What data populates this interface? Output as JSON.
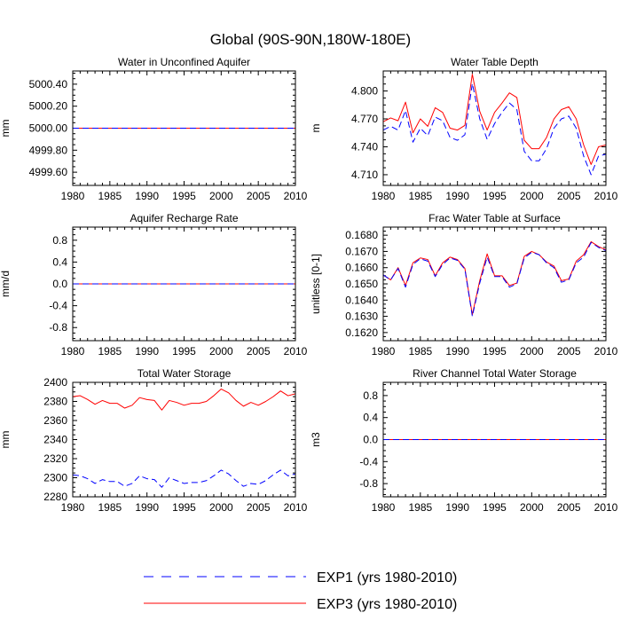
{
  "figure": {
    "title": "Global (90S-90N,180W-180E)"
  },
  "legend": [
    {
      "label": "EXP1 (yrs 1980-2010)",
      "color": "#0000ff",
      "dash": "dashed"
    },
    {
      "label": "EXP3 (yrs 1980-2010)",
      "color": "#ff0000",
      "dash": "solid"
    }
  ],
  "chart_data": [
    {
      "type": "line",
      "title": "Water in Unconfined Aquifer",
      "xlabel": "",
      "ylabel": "mm",
      "xlim": [
        1980,
        2010
      ],
      "ylim": [
        4999.48,
        5000.52
      ],
      "xticks": [
        1980,
        1985,
        1990,
        1995,
        2000,
        2005,
        2010
      ],
      "yticks": [
        4999.6,
        4999.8,
        5000.0,
        5000.2,
        5000.4
      ],
      "ytick_labels": [
        "4999.60",
        "4999.80",
        "5000.00",
        "5000.20",
        "5000.40"
      ],
      "x": [
        1980,
        2010
      ],
      "series": [
        {
          "name": "EXP1 (yrs 1980-2010)",
          "values": [
            5000.0,
            5000.0
          ]
        },
        {
          "name": "EXP3 (yrs 1980-2010)",
          "values": [
            5000.0,
            5000.0
          ]
        }
      ]
    },
    {
      "type": "line",
      "title": "Water Table Depth",
      "xlabel": "",
      "ylabel": "m",
      "xlim": [
        1980,
        2010
      ],
      "ylim": [
        4.6985,
        4.8215
      ],
      "xticks": [
        1980,
        1985,
        1990,
        1995,
        2000,
        2005,
        2010
      ],
      "yticks": [
        4.71,
        4.74,
        4.77,
        4.8
      ],
      "ytick_labels": [
        "4.710",
        "4.740",
        "4.770",
        "4.800"
      ],
      "x": [
        1980,
        1981,
        1982,
        1983,
        1984,
        1985,
        1986,
        1987,
        1988,
        1989,
        1990,
        1991,
        1992,
        1993,
        1994,
        1995,
        1996,
        1997,
        1998,
        1999,
        2000,
        2001,
        2002,
        2003,
        2004,
        2005,
        2006,
        2007,
        2008,
        2009,
        2010
      ],
      "series": [
        {
          "name": "EXP1 (yrs 1980-2010)",
          "values": [
            4.758,
            4.762,
            4.758,
            4.779,
            4.745,
            4.76,
            4.752,
            4.772,
            4.768,
            4.75,
            4.747,
            4.753,
            4.808,
            4.77,
            4.748,
            4.765,
            4.777,
            4.787,
            4.78,
            4.735,
            4.725,
            4.725,
            4.738,
            4.76,
            4.77,
            4.773,
            4.76,
            4.73,
            4.71,
            4.73,
            4.732
          ]
        },
        {
          "name": "EXP3 (yrs 1980-2010)",
          "values": [
            4.767,
            4.771,
            4.768,
            4.788,
            4.755,
            4.77,
            4.762,
            4.782,
            4.777,
            4.76,
            4.758,
            4.763,
            4.818,
            4.778,
            4.758,
            4.777,
            4.787,
            4.798,
            4.793,
            4.747,
            4.738,
            4.738,
            4.75,
            4.77,
            4.78,
            4.783,
            4.77,
            4.742,
            4.721,
            4.74,
            4.742
          ]
        }
      ]
    },
    {
      "type": "line",
      "title": "Aquifer Recharge Rate",
      "xlabel": "",
      "ylabel": "mm/d",
      "xlim": [
        1980,
        2010
      ],
      "ylim": [
        -1.04,
        1.04
      ],
      "xticks": [
        1980,
        1985,
        1990,
        1995,
        2000,
        2005,
        2010
      ],
      "yticks": [
        -0.8,
        -0.4,
        0.0,
        0.4,
        0.8
      ],
      "ytick_labels": [
        "-0.8",
        "-0.4",
        "0.0",
        "0.4",
        "0.8"
      ],
      "x": [
        1980,
        2010
      ],
      "series": [
        {
          "name": "EXP1 (yrs 1980-2010)",
          "values": [
            0.0,
            0.0
          ]
        },
        {
          "name": "EXP3 (yrs 1980-2010)",
          "values": [
            0.0,
            0.0
          ]
        }
      ]
    },
    {
      "type": "line",
      "title": "Frac Water Table at Surface",
      "xlabel": "",
      "ylabel": "unitless [0-1]",
      "xlim": [
        1980,
        2010
      ],
      "ylim": [
        0.1615,
        0.1685
      ],
      "xticks": [
        1980,
        1985,
        1990,
        1995,
        2000,
        2005,
        2010
      ],
      "yticks": [
        0.162,
        0.163,
        0.164,
        0.165,
        0.166,
        0.167,
        0.168
      ],
      "ytick_labels": [
        "0.1620",
        "0.1630",
        "0.1640",
        "0.1650",
        "0.1660",
        "0.1670",
        "0.1680"
      ],
      "x": [
        1980,
        1981,
        1982,
        1983,
        1984,
        1985,
        1986,
        1987,
        1988,
        1989,
        1990,
        1991,
        1992,
        1993,
        1994,
        1995,
        1996,
        1997,
        1998,
        1999,
        2000,
        2001,
        2002,
        2003,
        2004,
        2005,
        2006,
        2007,
        2008,
        2009,
        2010
      ],
      "series": [
        {
          "name": "EXP1 (yrs 1980-2010)",
          "values": [
            0.16555,
            0.16525,
            0.16595,
            0.1648,
            0.1662,
            0.16655,
            0.1664,
            0.16545,
            0.1662,
            0.1666,
            0.16645,
            0.1659,
            0.163,
            0.16505,
            0.16665,
            0.16545,
            0.16545,
            0.1648,
            0.165,
            0.1666,
            0.16695,
            0.1668,
            0.1663,
            0.166,
            0.1651,
            0.16525,
            0.1663,
            0.16665,
            0.16755,
            0.16725,
            0.16705
          ]
        },
        {
          "name": "EXP3 (yrs 1980-2010)",
          "values": [
            0.16555,
            0.16525,
            0.166,
            0.1649,
            0.1663,
            0.1666,
            0.1665,
            0.1655,
            0.1663,
            0.16665,
            0.1665,
            0.16595,
            0.1631,
            0.1652,
            0.16685,
            0.1655,
            0.1655,
            0.1649,
            0.16505,
            0.1667,
            0.167,
            0.1668,
            0.16635,
            0.1661,
            0.1652,
            0.1653,
            0.1664,
            0.1668,
            0.1676,
            0.1673,
            0.1671
          ]
        }
      ]
    },
    {
      "type": "line",
      "title": "Total Water Storage",
      "xlabel": "",
      "ylabel": "mm",
      "xlim": [
        1980,
        2010
      ],
      "ylim": [
        2280,
        2400
      ],
      "xticks": [
        1980,
        1985,
        1990,
        1995,
        2000,
        2005,
        2010
      ],
      "yticks": [
        2280,
        2300,
        2320,
        2340,
        2360,
        2380,
        2400
      ],
      "ytick_labels": [
        "2280",
        "2300",
        "2320",
        "2340",
        "2360",
        "2380",
        "2400"
      ],
      "x": [
        1980,
        1981,
        1982,
        1983,
        1984,
        1985,
        1986,
        1987,
        1988,
        1989,
        1990,
        1991,
        1992,
        1993,
        1994,
        1995,
        1996,
        1997,
        1998,
        1999,
        2000,
        2001,
        2002,
        2003,
        2004,
        2005,
        2006,
        2007,
        2008,
        2009,
        2010
      ],
      "series": [
        {
          "name": "EXP1 (yrs 1980-2010)",
          "values": [
            2303,
            2302,
            2299,
            2294,
            2298,
            2296,
            2296,
            2291,
            2294,
            2302,
            2299,
            2298,
            2290,
            2300,
            2297,
            2294,
            2295,
            2295,
            2297,
            2302,
            2308,
            2304,
            2297,
            2291,
            2294,
            2293,
            2297,
            2303,
            2308,
            2302,
            2304
          ]
        },
        {
          "name": "EXP3 (yrs 1980-2010)",
          "values": [
            2385,
            2386,
            2382,
            2377,
            2381,
            2378,
            2378,
            2373,
            2376,
            2384,
            2382,
            2381,
            2371,
            2381,
            2379,
            2376,
            2378,
            2378,
            2380,
            2386,
            2393,
            2389,
            2381,
            2375,
            2379,
            2376,
            2380,
            2385,
            2391,
            2386,
            2388
          ]
        }
      ]
    },
    {
      "type": "line",
      "title": "River Channel Total Water Storage",
      "xlabel": "",
      "ylabel": "m3",
      "xlim": [
        1980,
        2010
      ],
      "ylim": [
        -1.04,
        1.04
      ],
      "xticks": [
        1980,
        1985,
        1990,
        1995,
        2000,
        2005,
        2010
      ],
      "yticks": [
        -0.8,
        -0.4,
        0.0,
        0.4,
        0.8
      ],
      "ytick_labels": [
        "-0.8",
        "-0.4",
        "0.0",
        "0.4",
        "0.8"
      ],
      "x": [
        1980,
        2010
      ],
      "series": [
        {
          "name": "EXP1 (yrs 1980-2010)",
          "values": [
            0.0,
            0.0
          ]
        },
        {
          "name": "EXP3 (yrs 1980-2010)",
          "values": [
            0.0,
            0.0
          ]
        }
      ]
    }
  ]
}
